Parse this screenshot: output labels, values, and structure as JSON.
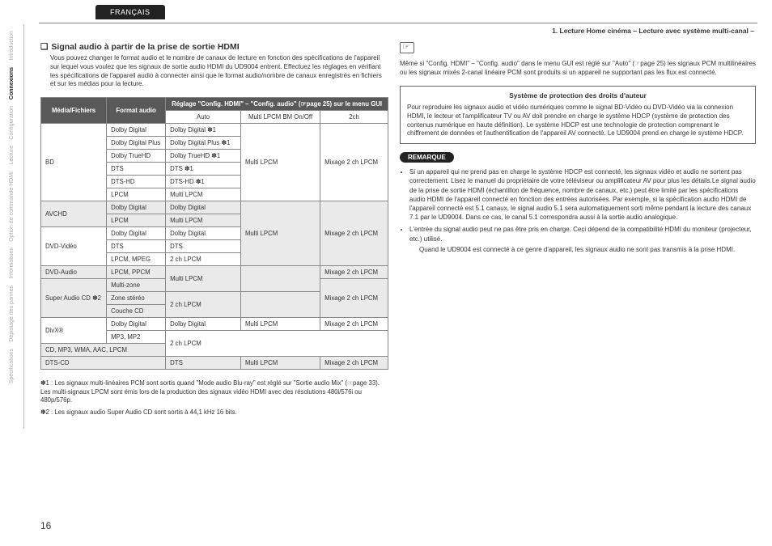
{
  "lang_tab": "FRANÇAIS",
  "breadcrumb": "1. Lecture Home cinéma – Lecture avec système multi-canal –",
  "sidebar": {
    "items": [
      {
        "label": "Introduction",
        "active": false
      },
      {
        "label": "Connexions",
        "active": true
      },
      {
        "label": "Configuration",
        "active": false
      },
      {
        "label": "Lecture",
        "active": false
      },
      {
        "label": "Option de commande HDMI",
        "active": false
      },
      {
        "label": "Informations",
        "active": false
      },
      {
        "label": "Dépistage des pannes",
        "active": false
      },
      {
        "label": "Spécifications",
        "active": false
      }
    ]
  },
  "left": {
    "title": "Signal audio à partir de la prise de sortie HDMI",
    "intro": "Vous pouvez changer le format audio et le nombre de canaux de lecture en fonction des spécifications de l'appareil sur lequel vous voulez que les signaux de sortie audio HDMI du UD9004 entrent. Effectuez les réglages en vérifiant les spécifications de l'appareil audio à connecter ainsi que le format audio/nombre de canaux enregistrés en fichiers et sur les médias pour la lecture.",
    "table": {
      "head_media": "Média/Fichiers",
      "head_format": "Format audio",
      "head_setting": "Réglage \"Config. HDMI\" – \"Config. audio\" (☞page 25) sur le menu GUI",
      "sub_auto": "Auto",
      "sub_multi": "Multi LPCM BM On/Off",
      "sub_2ch": "2ch",
      "mix2": "Mixage 2 ch LPCM",
      "multi_lpcm": "Multi LPCM",
      "rows": {
        "bd": "BD",
        "avchd": "AVCHD",
        "dvdv": "DVD-Vidéo",
        "dvda": "DVD-Audio",
        "sacd": "Super Audio CD ✽2",
        "divx": "DivX®",
        "cdmp3": "CD, MP3, WMA, AAC, LPCM",
        "dtscd": "DTS-CD",
        "dd": "Dolby Digital",
        "ddp": "Dolby Digital Plus",
        "dthd": "Dolby TrueHD",
        "dts": "DTS",
        "dtshd": "DTS-HD",
        "lpcm": "LPCM",
        "lpcm_mpeg": "LPCM, MPEG",
        "lpcm_ppcm": "LPCM, PPCM",
        "multizone": "Multi-zone",
        "zonestereo": "Zone stéréo",
        "couchecd": "Couche CD",
        "mp3mp2": "MP3, MP2",
        "dd_s1": "Dolby Digital ✽1",
        "ddp_s1": "Dolby Digital Plus ✽1",
        "dthd_s1": "Dolby TrueHD ✽1",
        "dts_s1": "DTS ✽1",
        "dtshd_s1": "DTS-HD ✽1",
        "two_lpcm": "2 ch LPCM"
      }
    },
    "fn1": "✽1 : Les signaux multi-linéaires PCM sont sortis quand \"Mode audio Blu-ray\" est réglé sur \"Sortie audio Mix\" (☞page 33). Les multi-signaux LPCM sont émis lors de la production des signaux vidéo HDMI avec des résolutions 480i/576i ou 480p/576p.",
    "fn2": "✽2 : Les signaux audio Super Audio CD sont sortis à 44,1 kHz 16 bits."
  },
  "right": {
    "intro": "Même si \"Config. HDMI\" – \"Config. audio\" dans le menu GUI est réglé sur \"Auto\" (☞page 25) les signaux PCM multilinéaires ou les signaux mixés 2-canal linéaire PCM sont produits si un appareil ne supportant pas les flux est connecté.",
    "box_title": "Système de protection des droits d'auteur",
    "box_body": "Pour reproduire les signaux audio et vidéo numériques comme le signal BD-Vidéo ou DVD-Vidéo via la connexion HDMI, le lecteur et l'amplificateur TV ou AV doit prendre en charge le système HDCP (système de protection des contenus numérique en haute définition). Le système HDCP est une technologie de protection comprenant le chiffrement de données et l'authentification de l'appareil AV connecté. Le UD9004 prend en charge le système HDCP.",
    "remark": "REMARQUE",
    "b1": "Si un appareil qui ne prend pas en charge le système HDCP est connecté, les signaux vidéo et audio ne sortent pas correctement. Lisez le manuel du propriétaire de votre téléviseur ou amplificateur AV pour plus les détails.Le signal audio de la prise de sortie HDMI (échantillon de fréquence, nombre de canaux, etc.) peut être limité par les spécifications audio HDMI de l'appareil connecté en fonction des entrées autorisées. Par exemple, si la spécification audio HDMI de l'appareil connecté est 5.1 canaux, le signal audio 5.1 sera automatiquement sorti même pendant la lecture des canaux 7.1 par le UD9004. Dans ce cas, le canal 5.1 correspondra aussi à la sortie audio analogique.",
    "b2": "L'entrée du signal audio peut ne pas être pris en charge. Ceci dépend de la compatibilité HDMI du moniteur (projecteur, etc.) utilisé.",
    "b2_sub": "Quand le UD9004 est connecté à ce genre d'appareil, les signaux audio ne sont pas transmis à la prise HDMI."
  },
  "page_number": "16"
}
